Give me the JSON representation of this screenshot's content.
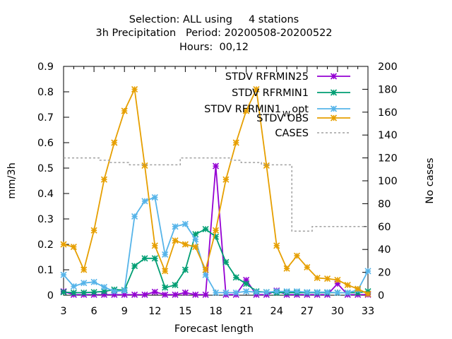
{
  "chart_data": {
    "type": "line",
    "title_lines": [
      "Selection: ALL using     4 stations",
      "3h Precipitation   Period: 20200508-20200522",
      "Hours:  00,12"
    ],
    "xlabel": "Forecast length",
    "ylabel": "mm/3h",
    "y2label": "No cases",
    "xlim": [
      3,
      33
    ],
    "ylim": [
      0,
      0.9
    ],
    "y2lim": [
      0,
      200
    ],
    "x_ticks": [
      3,
      6,
      9,
      12,
      15,
      18,
      21,
      24,
      27,
      30,
      33
    ],
    "y_ticks": [
      "0",
      "0.1",
      "0.2",
      "0.3",
      "0.4",
      "0.5",
      "0.6",
      "0.7",
      "0.8",
      "0.9"
    ],
    "y2_ticks": [
      "0",
      "20",
      "40",
      "60",
      "80",
      "100",
      "120",
      "140",
      "160",
      "180",
      "200"
    ],
    "legend_position": "top-right",
    "grid": false,
    "x": [
      3,
      4,
      5,
      6,
      7,
      8,
      9,
      10,
      11,
      12,
      13,
      14,
      15,
      16,
      17,
      18,
      19,
      20,
      21,
      22,
      23,
      24,
      25,
      26,
      27,
      28,
      29,
      30,
      31,
      32,
      33
    ],
    "series": [
      {
        "label_main": "STDV RFRMIN25",
        "label_sub": "",
        "color": "#9400d3",
        "axis": "y1",
        "style": "line-points",
        "values": [
          0.015,
          0.002,
          0.002,
          0.002,
          0.002,
          0.002,
          0.002,
          0.002,
          0.002,
          0.013,
          0.002,
          0.002,
          0.01,
          0.002,
          0.002,
          0.508,
          0.002,
          0.002,
          0.06,
          0.002,
          0.002,
          0.018,
          0.002,
          0.002,
          0.002,
          0.002,
          0.002,
          0.045,
          0.002,
          0.002,
          0.002
        ]
      },
      {
        "label_main": "STDV RFRMIN1",
        "label_sub": "",
        "color": "#009e73",
        "axis": "y1",
        "style": "line-points",
        "values": [
          0.012,
          0.01,
          0.01,
          0.012,
          0.015,
          0.022,
          0.02,
          0.115,
          0.145,
          0.145,
          0.03,
          0.04,
          0.1,
          0.24,
          0.26,
          0.23,
          0.13,
          0.07,
          0.045,
          0.015,
          0.012,
          0.01,
          0.01,
          0.01,
          0.01,
          0.01,
          0.01,
          0.01,
          0.01,
          0.01,
          0.015
        ]
      },
      {
        "label_main": "STDV RFRMIN1",
        "label_sub": "W",
        "label_tail": "opt",
        "color": "#56b4e9",
        "axis": "y1",
        "style": "line-points",
        "values": [
          0.08,
          0.035,
          0.048,
          0.052,
          0.032,
          0.015,
          0.018,
          0.31,
          0.37,
          0.385,
          0.16,
          0.27,
          0.28,
          0.22,
          0.08,
          0.01,
          0.01,
          0.01,
          0.015,
          0.012,
          0.012,
          0.015,
          0.015,
          0.015,
          0.012,
          0.012,
          0.012,
          0.01,
          0.01,
          0.02,
          0.095
        ]
      },
      {
        "label_main": "STDV OBS",
        "label_sub": "",
        "color": "#e69f00",
        "axis": "y1",
        "style": "line-points",
        "values": [
          0.2,
          0.19,
          0.1,
          0.255,
          0.455,
          0.6,
          0.725,
          0.81,
          0.51,
          0.195,
          0.095,
          0.215,
          0.2,
          0.19,
          0.1,
          0.255,
          0.455,
          0.6,
          0.725,
          0.81,
          0.51,
          0.195,
          0.105,
          0.155,
          0.11,
          0.068,
          0.065,
          0.06,
          0.04,
          0.025,
          0.005
        ]
      },
      {
        "label_main": "CASES",
        "label_sub": "",
        "color": "#a0a0a0",
        "axis": "y2",
        "style": "dashed-step",
        "values": [
          120,
          120,
          120,
          120,
          118,
          116,
          116,
          114,
          114,
          114,
          114,
          114,
          120,
          120,
          120,
          120,
          120,
          118,
          116,
          116,
          114,
          114,
          114,
          56,
          56,
          60,
          60,
          60,
          60,
          60,
          60
        ]
      }
    ]
  }
}
